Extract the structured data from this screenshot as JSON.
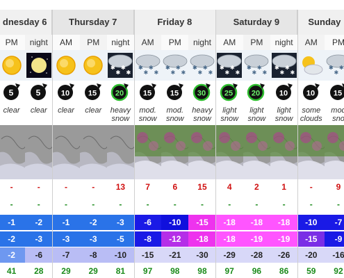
{
  "days": [
    {
      "label": "dnesday 6",
      "cols": 2
    },
    {
      "label": "Thursday 7",
      "cols": 3
    },
    {
      "label": "Friday 8",
      "cols": 3
    },
    {
      "label": "Saturday 9",
      "cols": 3
    },
    {
      "label": "Sunday",
      "cols": 2
    }
  ],
  "periods": [
    "PM",
    "night",
    "AM",
    "PM",
    "night",
    "AM",
    "PM",
    "night",
    "AM",
    "PM",
    "night",
    "AM",
    "PM"
  ],
  "weather_icons": [
    "sun-icon",
    "moon-icon",
    "sun-icon",
    "sun-icon",
    "heavy-snow-icon",
    "snow-icon",
    "snow-icon",
    "snow-icon",
    "snow-night-icon",
    "snow-icon",
    "snow-night-icon",
    "sun-cloud-icon",
    "snow-icon"
  ],
  "wind_speed": [
    "5",
    "5",
    "10",
    "15",
    "20",
    "15",
    "15",
    "30",
    "25",
    "20",
    "10",
    "10",
    "15"
  ],
  "wind_style": [
    "black",
    "black",
    "black",
    "black",
    "green",
    "black",
    "black",
    "green",
    "green",
    "green",
    "black",
    "black",
    "black"
  ],
  "summary": [
    [
      "clear"
    ],
    [
      "clear"
    ],
    [
      "clear"
    ],
    [
      "clear"
    ],
    [
      "heavy",
      "snow"
    ],
    [
      "mod.",
      "snow"
    ],
    [
      "mod.",
      "snow"
    ],
    [
      "heavy",
      "snow"
    ],
    [
      "light",
      "snow"
    ],
    [
      "light",
      "snow"
    ],
    [
      "light",
      "snow"
    ],
    [
      "some",
      "clouds"
    ],
    [
      "mod",
      "sno"
    ]
  ],
  "map_style": [
    "plain",
    "plain",
    "plain",
    "plain",
    "plain",
    "snowy",
    "snowy",
    "snowy",
    "snowy",
    "snowy",
    "snowy",
    "snowy",
    "snowy"
  ],
  "snow": [
    "-",
    "-",
    "-",
    "-",
    "13",
    "7",
    "6",
    "15",
    "4",
    "2",
    "1",
    "-",
    "9"
  ],
  "rain": [
    "-",
    "-",
    "-",
    "-",
    "-",
    "-",
    "-",
    "-",
    "-",
    "-",
    "-",
    "-",
    "-"
  ],
  "temp_max": [
    "-1",
    "-2",
    "-1",
    "-2",
    "-3",
    "-6",
    "-10",
    "-15",
    "-18",
    "-18",
    "-18",
    "-10",
    "-7"
  ],
  "temp_min": [
    "-2",
    "-3",
    "-3",
    "-3",
    "-5",
    "-8",
    "-12",
    "-18",
    "-18",
    "-19",
    "-19",
    "-15",
    "-9"
  ],
  "chill": [
    "-2",
    "-6",
    "-7",
    "-8",
    "-10",
    "-15",
    "-21",
    "-30",
    "-29",
    "-28",
    "-26",
    "-20",
    "-16"
  ],
  "humidity": [
    "41",
    "28",
    "29",
    "29",
    "81",
    "97",
    "98",
    "98",
    "97",
    "96",
    "86",
    "59",
    "92"
  ],
  "colors": {
    "snow_text": "#d01010",
    "rain_text": "#1a8a1a",
    "humidity_text": "#1a8a1a",
    "temp_max_bg": [
      "#2a73e8",
      "#2a73e8",
      "#2a73e8",
      "#2a73e8",
      "#2a73e8",
      "#1a1ae6",
      "#1010dd",
      "#ee33ee",
      "#ff55ff",
      "#ff55ff",
      "#ff55ff",
      "#1a1ae6",
      "#1a1ae6"
    ],
    "temp_min_bg": [
      "#2a73e8",
      "#2a73e8",
      "#2a73e8",
      "#2a73e8",
      "#2a73e8",
      "#1a1ae6",
      "#b52fe8",
      "#ee33ee",
      "#ff55ff",
      "#ff55ff",
      "#ff55ff",
      "#7a2ee6",
      "#1a1ae6"
    ],
    "chill_bg": [
      "#6e98f0",
      "#b9bdf5",
      "#b9bdf5",
      "#b9bdf5",
      "#b9bdf5",
      "#d8d8f8",
      "#d8d8f8",
      "#d8d8f8",
      "#d8d8f8",
      "#d8d8f8",
      "#d8d8f8",
      "#d8d8f8",
      "#d8d8f8"
    ]
  }
}
